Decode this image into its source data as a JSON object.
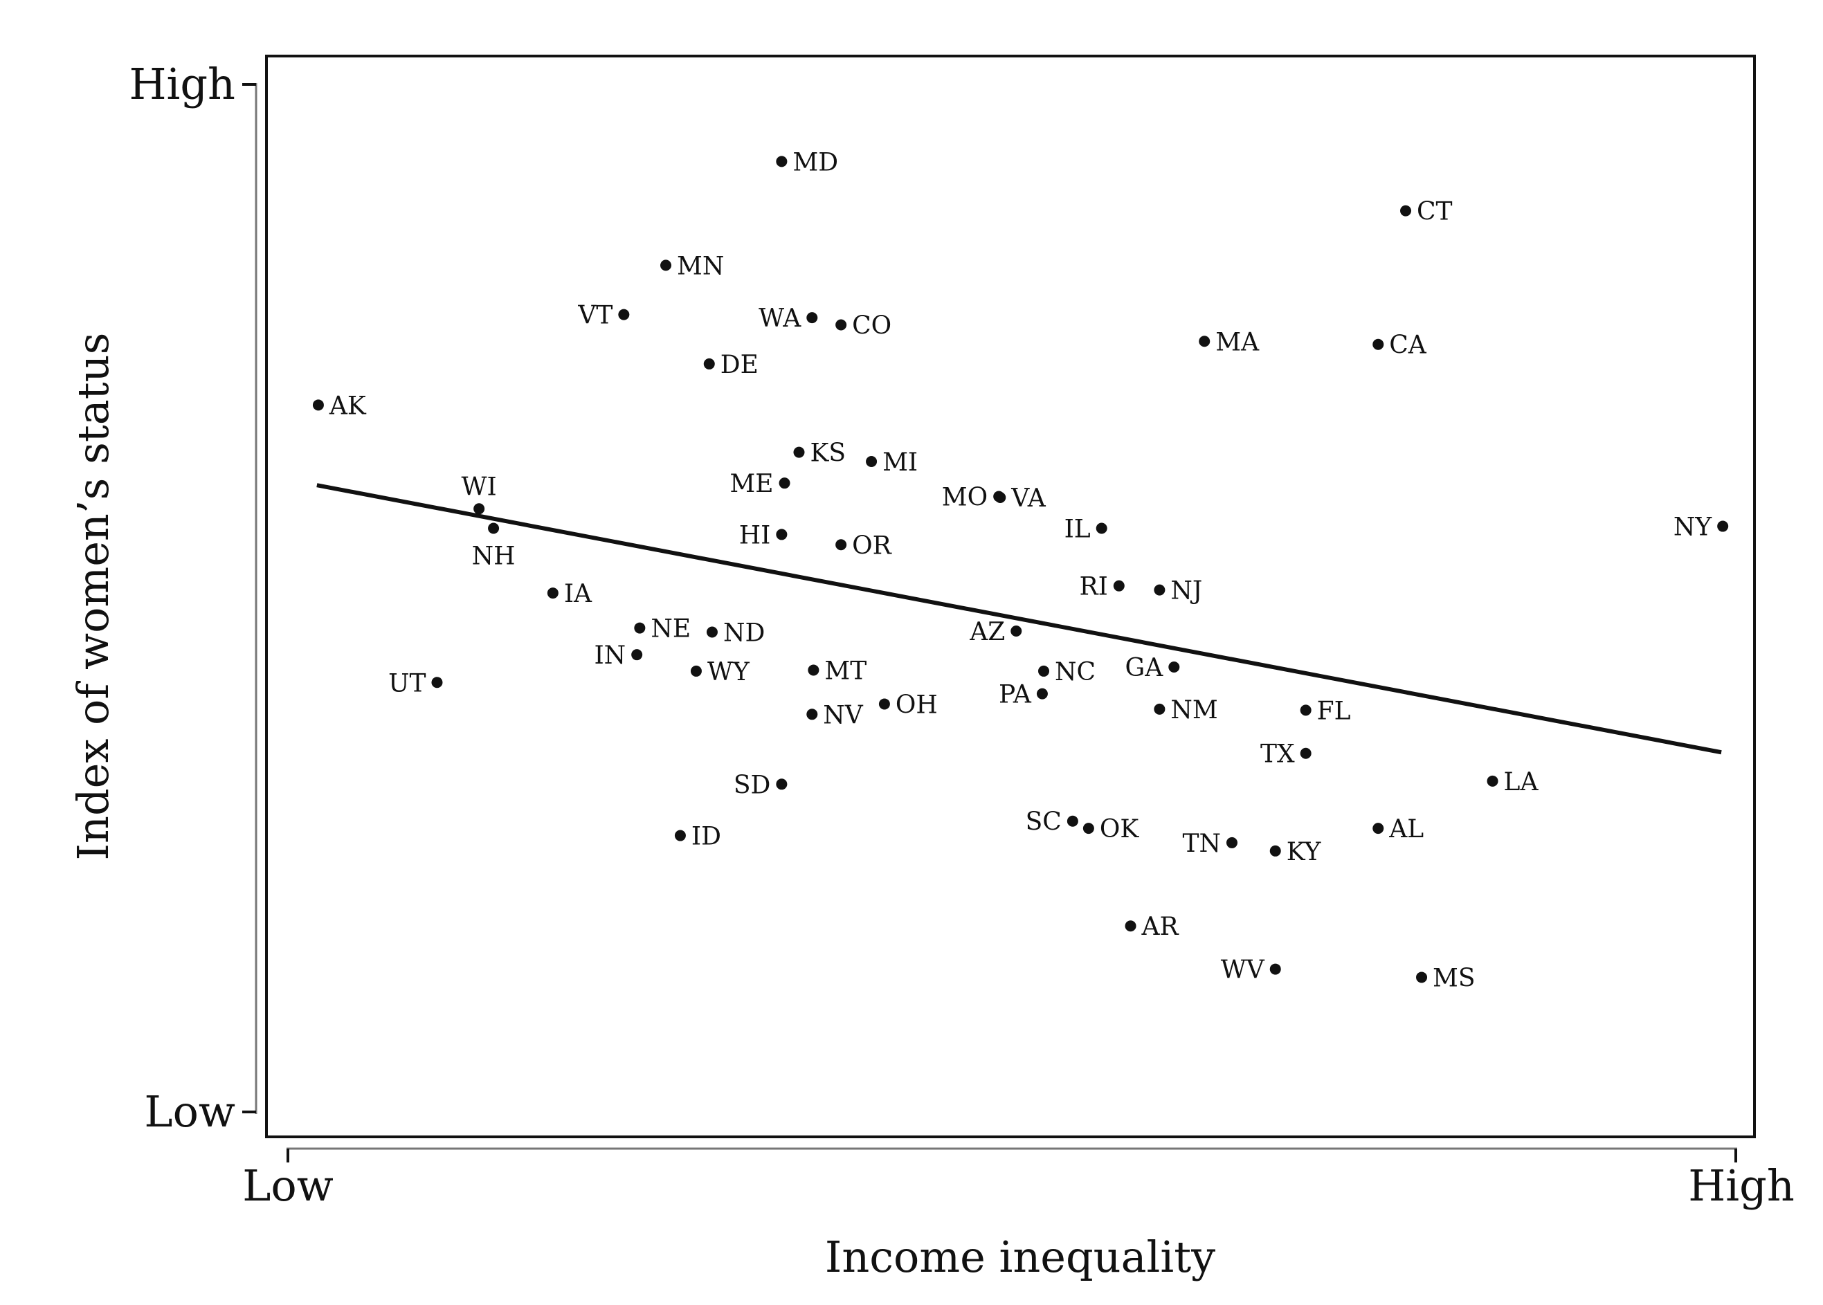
{
  "chart_data": {
    "type": "scatter",
    "xlabel": "Income inequality",
    "ylabel": "Index of women’s status",
    "x_ticks": [
      "Low",
      "High"
    ],
    "y_ticks": [
      "High",
      "Low"
    ],
    "xlim": [
      0,
      100
    ],
    "ylim": [
      0,
      100
    ],
    "grid": false,
    "points": [
      {
        "label": "MD",
        "x": 34.1,
        "y": 92.5,
        "side": "right"
      },
      {
        "label": "CT",
        "x": 77.2,
        "y": 87.7,
        "side": "right"
      },
      {
        "label": "MN",
        "x": 26.1,
        "y": 82.4,
        "side": "right"
      },
      {
        "label": "VT",
        "x": 23.2,
        "y": 77.6,
        "side": "left"
      },
      {
        "label": "WA",
        "x": 36.2,
        "y": 77.3,
        "side": "left"
      },
      {
        "label": "CO",
        "x": 38.2,
        "y": 76.6,
        "side": "right"
      },
      {
        "label": "MA",
        "x": 63.3,
        "y": 75.0,
        "side": "right"
      },
      {
        "label": "CA",
        "x": 75.3,
        "y": 74.7,
        "side": "right"
      },
      {
        "label": "DE",
        "x": 29.1,
        "y": 72.8,
        "side": "right"
      },
      {
        "label": "AK",
        "x": 2.1,
        "y": 68.8,
        "side": "right"
      },
      {
        "label": "KS",
        "x": 35.3,
        "y": 64.2,
        "side": "right"
      },
      {
        "label": "MI",
        "x": 40.3,
        "y": 63.3,
        "side": "right"
      },
      {
        "label": "ME",
        "x": 34.3,
        "y": 61.2,
        "side": "left"
      },
      {
        "label": "MO",
        "x": 49.1,
        "y": 59.9,
        "side": "left"
      },
      {
        "label": "VA",
        "x": 49.2,
        "y": 59.8,
        "side": "right"
      },
      {
        "label": "IL",
        "x": 56.2,
        "y": 56.8,
        "side": "left"
      },
      {
        "label": "NY",
        "x": 99.1,
        "y": 57.0,
        "side": "left"
      },
      {
        "label": "WI",
        "x": 13.2,
        "y": 58.7,
        "side": "above"
      },
      {
        "label": "NH",
        "x": 14.2,
        "y": 56.8,
        "side": "below"
      },
      {
        "label": "HI",
        "x": 34.1,
        "y": 56.2,
        "side": "left"
      },
      {
        "label": "OR",
        "x": 38.2,
        "y": 55.2,
        "side": "right"
      },
      {
        "label": "RI",
        "x": 57.4,
        "y": 51.2,
        "side": "left"
      },
      {
        "label": "NJ",
        "x": 60.2,
        "y": 50.8,
        "side": "right"
      },
      {
        "label": "IA",
        "x": 18.3,
        "y": 50.5,
        "side": "right"
      },
      {
        "label": "NE",
        "x": 24.3,
        "y": 47.1,
        "side": "right"
      },
      {
        "label": "ND",
        "x": 29.3,
        "y": 46.7,
        "side": "right"
      },
      {
        "label": "AZ",
        "x": 50.3,
        "y": 46.8,
        "side": "left"
      },
      {
        "label": "IN",
        "x": 24.1,
        "y": 44.5,
        "side": "left"
      },
      {
        "label": "WY",
        "x": 28.2,
        "y": 42.9,
        "side": "right"
      },
      {
        "label": "MT",
        "x": 36.3,
        "y": 43.0,
        "side": "right"
      },
      {
        "label": "NC",
        "x": 52.2,
        "y": 42.9,
        "side": "right"
      },
      {
        "label": "GA",
        "x": 61.2,
        "y": 43.3,
        "side": "left"
      },
      {
        "label": "UT",
        "x": 10.3,
        "y": 41.8,
        "side": "left"
      },
      {
        "label": "PA",
        "x": 52.1,
        "y": 40.7,
        "side": "left"
      },
      {
        "label": "OH",
        "x": 41.2,
        "y": 39.7,
        "side": "right"
      },
      {
        "label": "NV",
        "x": 36.2,
        "y": 38.7,
        "side": "right"
      },
      {
        "label": "NM",
        "x": 60.2,
        "y": 39.2,
        "side": "right"
      },
      {
        "label": "FL",
        "x": 70.3,
        "y": 39.1,
        "side": "right"
      },
      {
        "label": "TX",
        "x": 70.3,
        "y": 34.9,
        "side": "left"
      },
      {
        "label": "SD",
        "x": 34.1,
        "y": 31.9,
        "side": "left"
      },
      {
        "label": "LA",
        "x": 83.2,
        "y": 32.2,
        "side": "right"
      },
      {
        "label": "SC",
        "x": 54.2,
        "y": 28.3,
        "side": "left"
      },
      {
        "label": "OK",
        "x": 55.3,
        "y": 27.6,
        "side": "right"
      },
      {
        "label": "AL",
        "x": 75.3,
        "y": 27.6,
        "side": "right"
      },
      {
        "label": "ID",
        "x": 27.1,
        "y": 26.9,
        "side": "right"
      },
      {
        "label": "TN",
        "x": 65.2,
        "y": 26.2,
        "side": "left"
      },
      {
        "label": "KY",
        "x": 68.2,
        "y": 25.4,
        "side": "right"
      },
      {
        "label": "AR",
        "x": 58.2,
        "y": 18.1,
        "side": "right"
      },
      {
        "label": "WV",
        "x": 68.2,
        "y": 13.9,
        "side": "left"
      },
      {
        "label": "MS",
        "x": 78.3,
        "y": 13.1,
        "side": "right"
      }
    ],
    "trend_line": {
      "x": [
        2.0,
        99.0
      ],
      "y": [
        61.0,
        35.0
      ]
    }
  }
}
